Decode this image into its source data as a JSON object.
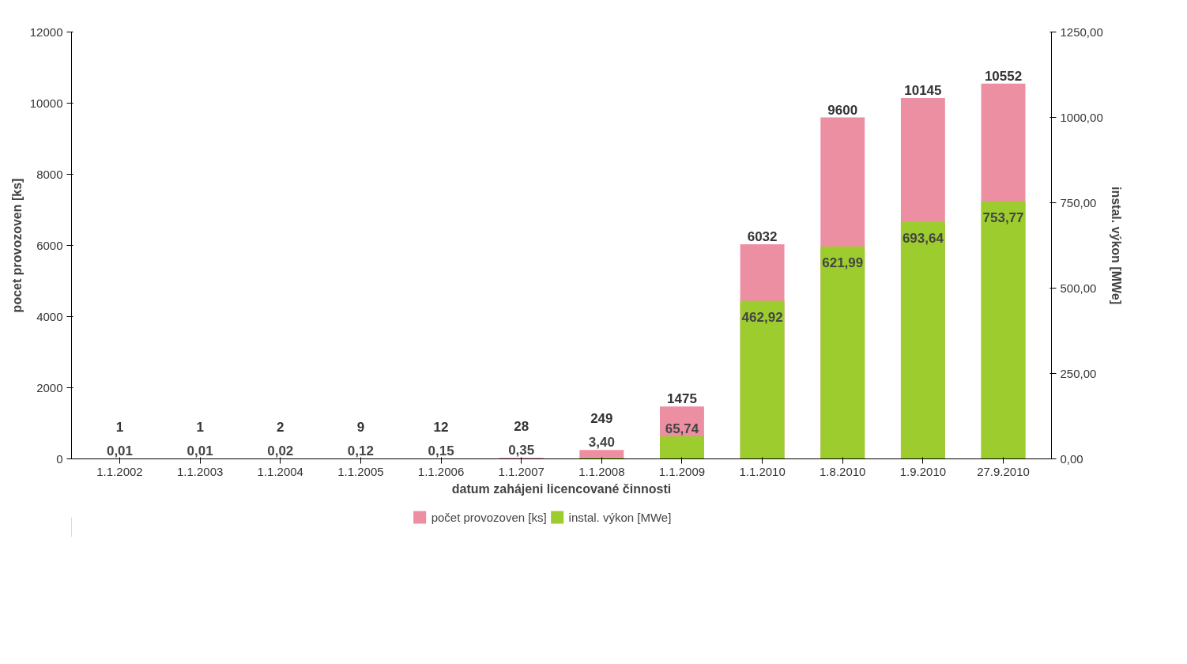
{
  "chart_data": {
    "type": "bar",
    "xlabel": "datum zahájeni licencované činnosti",
    "ylabel": "pocet provozoven [ks]",
    "y2label": "instal. výkon [MWe]",
    "categories": [
      "1.1.2002",
      "1.1.2003",
      "1.1.2004",
      "1.1.2005",
      "1.1.2006",
      "1.1.2007",
      "1.1.2008",
      "1.1.2009",
      "1.1.2010",
      "1.8.2010",
      "1.9.2010",
      "27.9.2010"
    ],
    "series": [
      {
        "name": "počet provozoven [ks]",
        "color": "#ec8fa3",
        "values": [
          1,
          1,
          2,
          9,
          12,
          28,
          249,
          1475,
          6032,
          9600,
          10145,
          10552
        ],
        "value_labels": [
          "1",
          "1",
          "2",
          "9",
          "12",
          "28",
          "249",
          "1475",
          "6032",
          "9600",
          "10145",
          "10552"
        ]
      },
      {
        "name": "instal. výkon [MWe]",
        "color": "#9ccc2e",
        "axis": "y2",
        "values": [
          0.01,
          0.01,
          0.02,
          0.12,
          0.15,
          0.35,
          3.4,
          65.74,
          462.92,
          621.99,
          693.64,
          753.77
        ],
        "value_labels": [
          "0,01",
          "0,01",
          "0,02",
          "0,12",
          "0,15",
          "0,35",
          "3,40",
          "65,74",
          "462,92",
          "621,99",
          "693,64",
          "753,77"
        ]
      }
    ],
    "ylim": [
      0,
      12000
    ],
    "yticks": [
      0,
      2000,
      4000,
      6000,
      8000,
      10000,
      12000
    ],
    "y2lim": [
      0,
      1250
    ],
    "y2ticks": [
      {
        "value": 0,
        "label": "0,00"
      },
      {
        "value": 250,
        "label": "250,00"
      },
      {
        "value": 500,
        "label": "500,00"
      },
      {
        "value": 750,
        "label": "750,00"
      },
      {
        "value": 1000,
        "label": "1000,00"
      },
      {
        "value": 1250,
        "label": "1250,00"
      }
    ],
    "grid": false,
    "legend": "bottom"
  }
}
